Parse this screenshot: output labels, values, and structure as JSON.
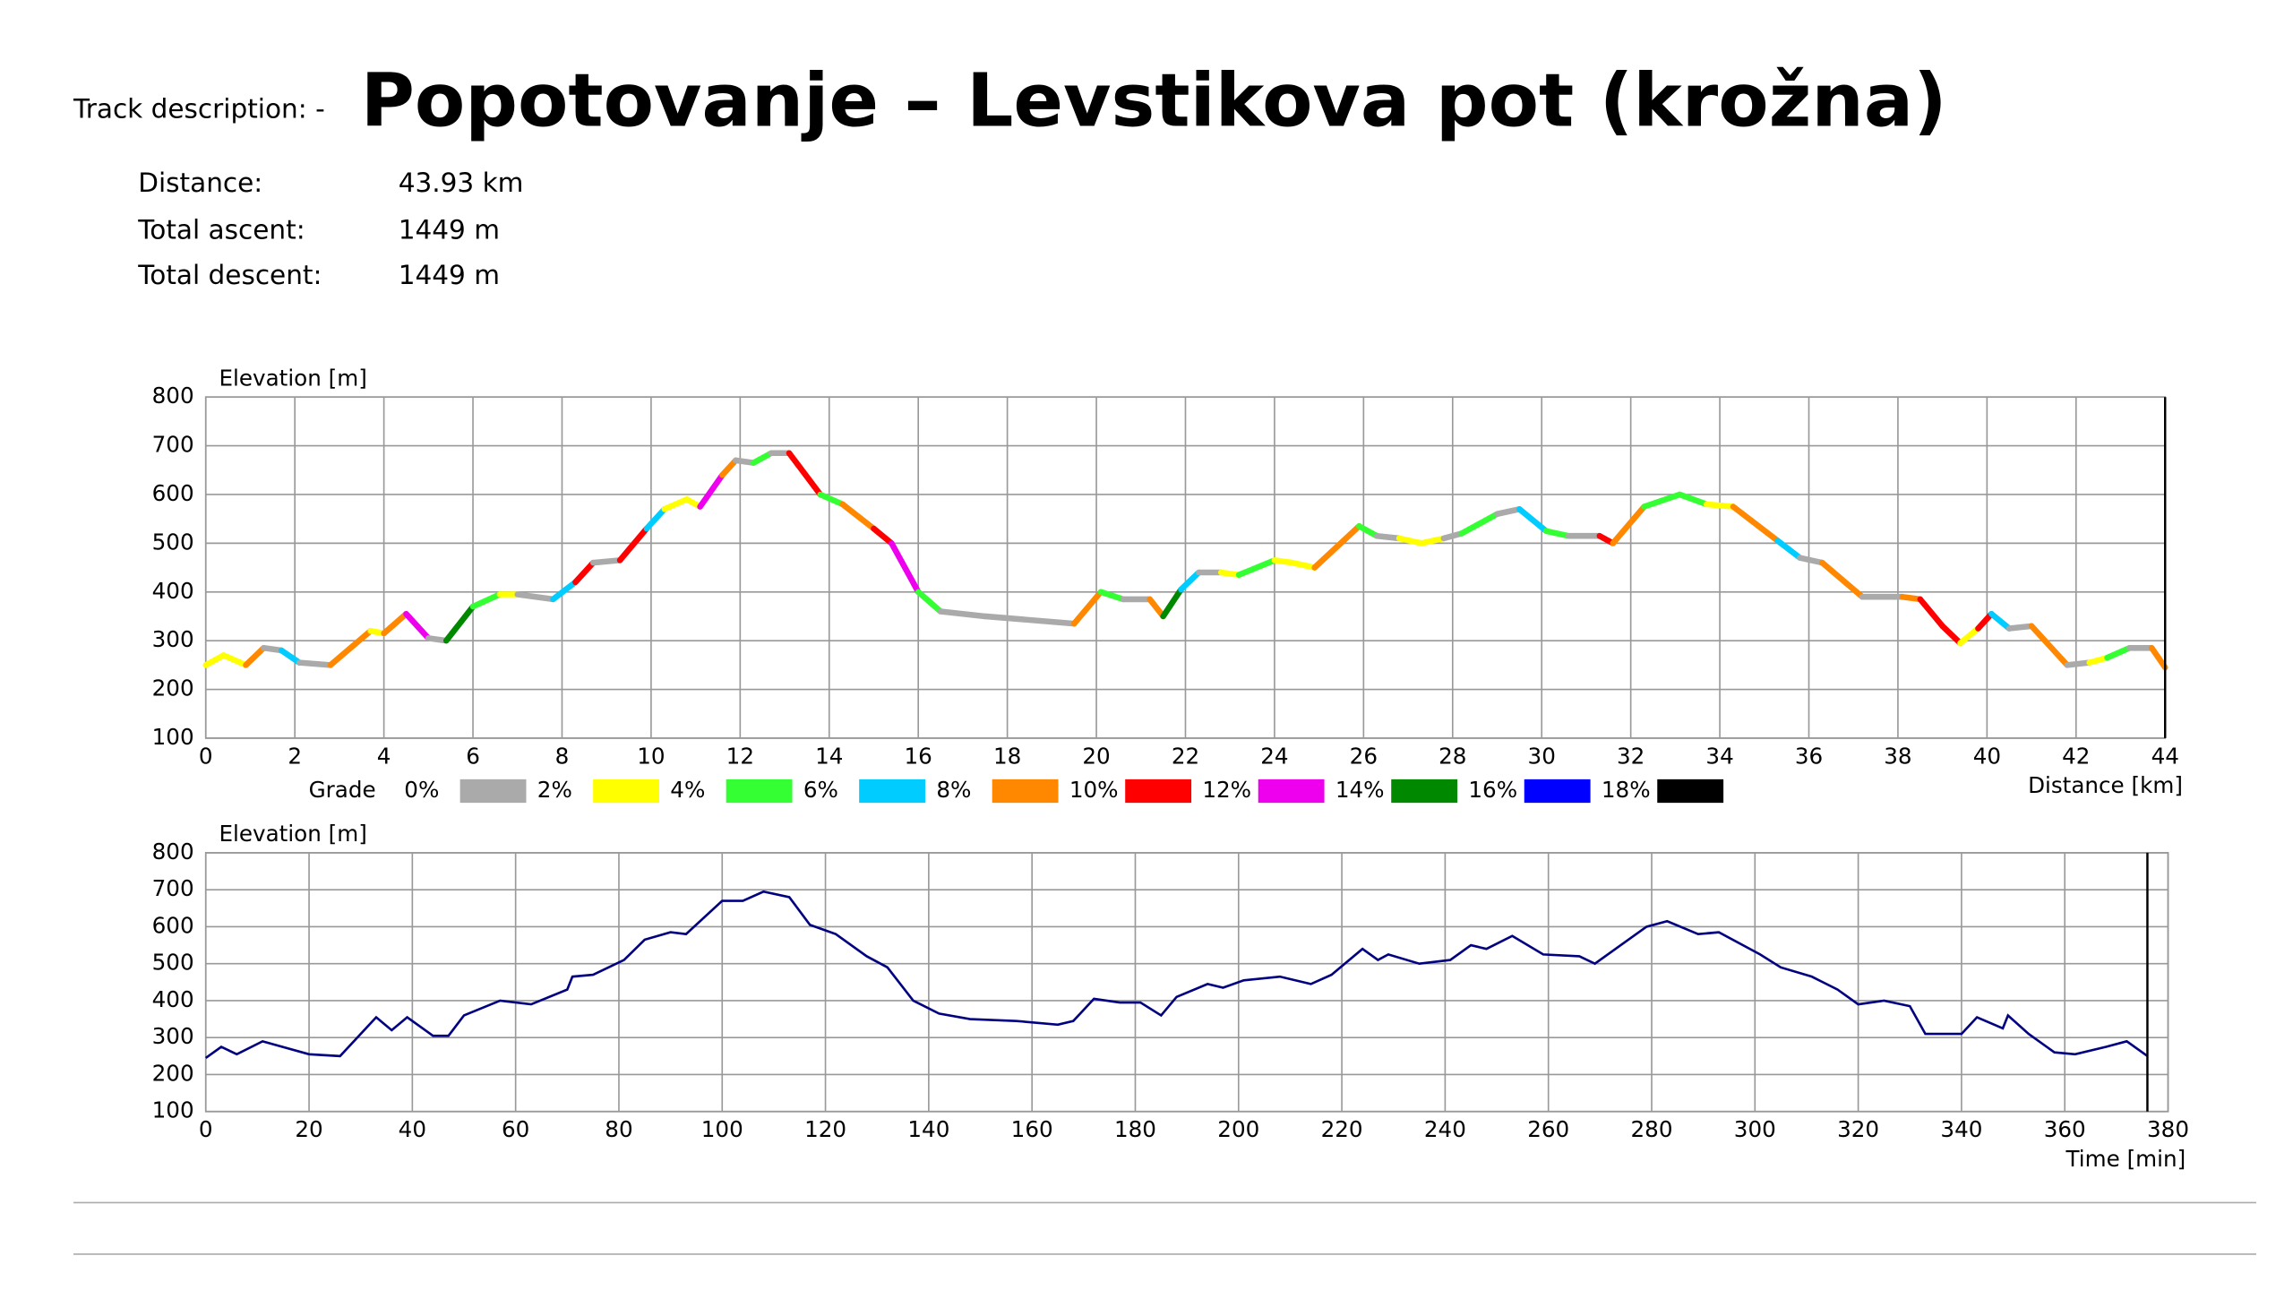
{
  "header": {
    "track_description": "Track description: -",
    "title": "Popotovanje – Levstikova pot (krožna)"
  },
  "stats": [
    {
      "label": "Distance:",
      "value": "43.93 km"
    },
    {
      "label": "Total ascent:",
      "value": "1449 m"
    },
    {
      "label": "Total descent:",
      "value": "1449 m"
    }
  ],
  "chart_data": [
    {
      "type": "grade_line",
      "y_label": "Elevation [m]",
      "x_label": "Distance [km]",
      "x": [
        0,
        0.4,
        0.9,
        1.3,
        1.7,
        2.1,
        2.8,
        3.7,
        4.0,
        4.5,
        5.0,
        5.4,
        6.0,
        6.6,
        7.0,
        7.8,
        8.3,
        8.7,
        9.3,
        9.9,
        10.3,
        10.8,
        11.1,
        11.6,
        11.9,
        12.3,
        12.7,
        13.1,
        13.8,
        14.3,
        15.0,
        15.4,
        16.0,
        16.5,
        17.5,
        19.5,
        20.1,
        20.6,
        21.2,
        21.5,
        21.9,
        22.3,
        22.8,
        23.2,
        24.0,
        24.4,
        24.9,
        25.9,
        26.3,
        26.8,
        27.3,
        27.8,
        28.2,
        29.0,
        29.5,
        30.1,
        30.6,
        31.3,
        31.6,
        32.3,
        33.1,
        33.7,
        34.3,
        35.3,
        35.8,
        36.3,
        37.2,
        38.1,
        38.5,
        39.0,
        39.4,
        39.8,
        40.1,
        40.5,
        41.0,
        41.8,
        42.3,
        42.7,
        43.2,
        43.7,
        44.0
      ],
      "values": [
        250,
        270,
        250,
        285,
        280,
        255,
        250,
        320,
        315,
        355,
        305,
        300,
        370,
        395,
        395,
        385,
        420,
        460,
        465,
        530,
        570,
        590,
        575,
        640,
        670,
        665,
        685,
        685,
        600,
        580,
        530,
        500,
        400,
        360,
        350,
        335,
        400,
        385,
        385,
        350,
        405,
        440,
        440,
        435,
        465,
        460,
        450,
        535,
        515,
        510,
        500,
        510,
        520,
        560,
        570,
        525,
        515,
        515,
        500,
        575,
        600,
        580,
        575,
        505,
        470,
        460,
        390,
        390,
        385,
        330,
        295,
        325,
        355,
        325,
        330,
        250,
        255,
        265,
        285,
        285,
        245
      ],
      "point_colors": [
        "#aaaaaa",
        "#ffff00",
        "#ffff00",
        "#ff8800",
        "#aaaaaa",
        "#00ccff",
        "#aaaaaa",
        "#ff8800",
        "#ffff00",
        "#ff8800",
        "#ee00ee",
        "#aaaaaa",
        "#008800",
        "#33ff33",
        "#ffff00",
        "#aaaaaa",
        "#00ccff",
        "#ff0000",
        "#aaaaaa",
        "#ff0000",
        "#00ccff",
        "#ffff00",
        "#ffff00",
        "#ee00ee",
        "#ff8800",
        "#aaaaaa",
        "#33ff33",
        "#aaaaaa",
        "#ff0000",
        "#33ff33",
        "#ff8800",
        "#ff0000",
        "#ee00ee",
        "#33ff33",
        "#aaaaaa",
        "#aaaaaa",
        "#ff8800",
        "#33ff33",
        "#aaaaaa",
        "#ff8800",
        "#008800",
        "#00ccff",
        "#aaaaaa",
        "#ffff00",
        "#33ff33",
        "#ffff00",
        "#ffff00",
        "#ff8800",
        "#33ff33",
        "#aaaaaa",
        "#ffff00",
        "#ffff00",
        "#aaaaaa",
        "#33ff33",
        "#aaaaaa",
        "#00ccff",
        "#33ff33",
        "#aaaaaa",
        "#ff0000",
        "#ff8800",
        "#33ff33",
        "#33ff33",
        "#ffff00",
        "#ff8800",
        "#00ccff",
        "#aaaaaa",
        "#ff8800",
        "#aaaaaa",
        "#ff8800",
        "#ff0000",
        "#ff0000",
        "#ffff00",
        "#ff0000",
        "#00ccff",
        "#aaaaaa",
        "#ff8800",
        "#aaaaaa",
        "#ffff00",
        "#33ff33",
        "#aaaaaa",
        "#ff8800"
      ],
      "xlim": [
        0,
        44
      ],
      "xticks": [
        0,
        2,
        4,
        6,
        8,
        10,
        12,
        14,
        16,
        18,
        20,
        22,
        24,
        26,
        28,
        30,
        32,
        34,
        36,
        38,
        40,
        42,
        44
      ],
      "ylim": [
        100,
        800
      ],
      "yticks": [
        100,
        200,
        300,
        400,
        500,
        600,
        700,
        800
      ],
      "grid": true,
      "legend": {
        "title": "Grade",
        "labels": [
          "0%",
          "2%",
          "4%",
          "6%",
          "8%",
          "10%",
          "12%",
          "14%",
          "16%",
          "18%"
        ],
        "colors": [
          "#aaaaaa",
          "#ffff00",
          "#33ff33",
          "#00ccff",
          "#ff8800",
          "#ff0000",
          "#ee00ee",
          "#008800",
          "#0000ff",
          "#000000"
        ]
      }
    },
    {
      "type": "line",
      "y_label": "Elevation [m]",
      "x_label": "Time [min]",
      "color": "#000080",
      "x": [
        0,
        3,
        6,
        11,
        20,
        26,
        33,
        36,
        39,
        44,
        47,
        50,
        57,
        63,
        70,
        71,
        75,
        81,
        85,
        90,
        93,
        100,
        104,
        108,
        113,
        117,
        122,
        128,
        132,
        137,
        142,
        148,
        157,
        165,
        168,
        172,
        177,
        181,
        185,
        188,
        194,
        197,
        201,
        208,
        214,
        218,
        224,
        227,
        229,
        235,
        241,
        245,
        248,
        253,
        259,
        266,
        269,
        274,
        279,
        283,
        289,
        293,
        301,
        305,
        311,
        316,
        320,
        325,
        330,
        333,
        340,
        343,
        348,
        349,
        353,
        358,
        362,
        368,
        372,
        376
      ],
      "values": [
        245,
        275,
        255,
        290,
        255,
        250,
        355,
        320,
        355,
        305,
        305,
        360,
        400,
        390,
        430,
        465,
        470,
        510,
        565,
        585,
        580,
        670,
        670,
        695,
        680,
        605,
        580,
        520,
        490,
        400,
        365,
        350,
        345,
        335,
        345,
        405,
        395,
        395,
        360,
        410,
        445,
        435,
        455,
        465,
        445,
        470,
        540,
        510,
        525,
        500,
        510,
        550,
        540,
        575,
        525,
        520,
        500,
        550,
        600,
        615,
        580,
        585,
        525,
        490,
        465,
        430,
        390,
        400,
        385,
        310,
        310,
        355,
        325,
        360,
        310,
        260,
        255,
        275,
        290,
        250
      ],
      "xlim": [
        0,
        380
      ],
      "xticks": [
        0,
        20,
        40,
        60,
        80,
        100,
        120,
        140,
        160,
        180,
        200,
        220,
        240,
        260,
        280,
        300,
        320,
        340,
        360,
        380
      ],
      "ylim": [
        100,
        800
      ],
      "yticks": [
        100,
        200,
        300,
        400,
        500,
        600,
        700,
        800
      ],
      "grid": true
    }
  ]
}
